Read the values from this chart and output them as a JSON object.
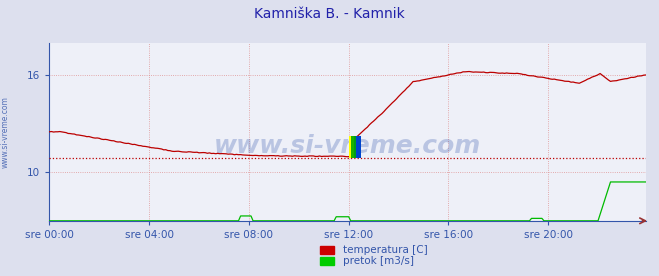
{
  "title": "Kamniška B. - Kamnik",
  "title_color": "#2222aa",
  "bg_color": "#dde0ee",
  "plot_bg_color": "#eef0f8",
  "grid_color": "#dd8888",
  "x_labels": [
    "sre 00:00",
    "sre 04:00",
    "sre 08:00",
    "sre 12:00",
    "sre 16:00",
    "sre 20:00"
  ],
  "x_ticks_idx": [
    0,
    48,
    96,
    144,
    192,
    240
  ],
  "y_ticks": [
    10,
    16
  ],
  "y_lim": [
    7.0,
    18.0
  ],
  "n_points": 288,
  "temp_color": "#bb0000",
  "flow_color": "#00bb00",
  "watermark": "www.si-vreme.com",
  "watermark_color": "#3355aa",
  "avg_line_y": 10.85,
  "avg_line_color": "#bb0000",
  "legend_labels": [
    "temperatura [C]",
    "pretok [m3/s]"
  ],
  "legend_colors": [
    "#cc0000",
    "#00cc00"
  ],
  "axis_color": "#3355aa",
  "tick_fontsize": 7.5,
  "title_fontsize": 10
}
